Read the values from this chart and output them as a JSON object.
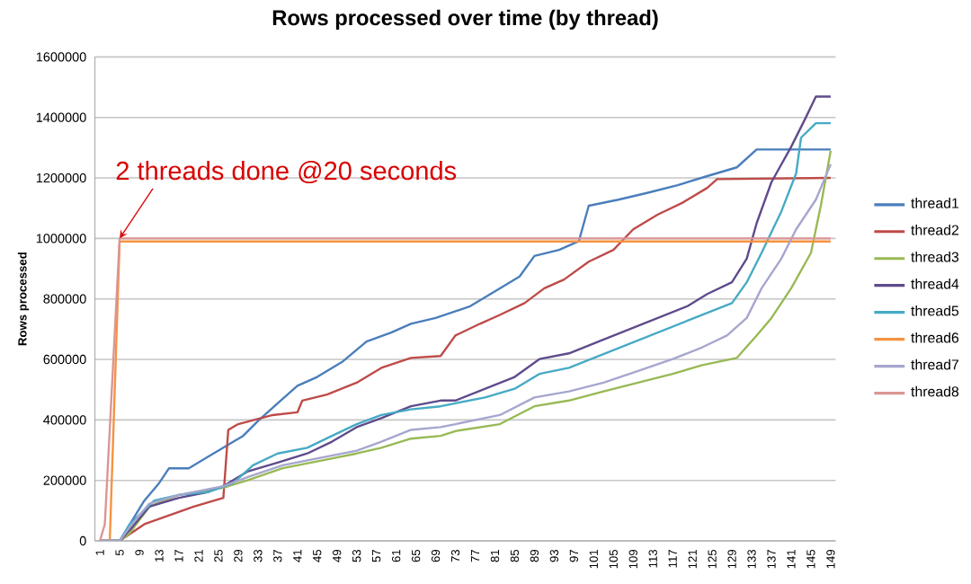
{
  "chart_data": {
    "type": "line",
    "title": "Rows processed over time (by thread)",
    "ylabel": "Rows processed",
    "xlim": [
      0,
      150
    ],
    "ylim": [
      0,
      1600000
    ],
    "xticks": [
      1,
      5,
      9,
      13,
      17,
      21,
      25,
      29,
      33,
      37,
      41,
      45,
      49,
      53,
      57,
      61,
      65,
      69,
      73,
      77,
      81,
      85,
      89,
      93,
      97,
      101,
      105,
      109,
      113,
      117,
      121,
      125,
      129,
      133,
      137,
      141,
      145,
      149
    ],
    "yticks": [
      0,
      200000,
      400000,
      600000,
      800000,
      1000000,
      1200000,
      1400000,
      1600000
    ],
    "grid": "y",
    "legend": "right",
    "annotations": [
      {
        "text": "2 threads done @20 seconds",
        "x": 5,
        "y": 1000000
      }
    ],
    "series": [
      {
        "name": "thread1",
        "color": "#4a7ebb",
        "x": [
          1,
          5,
          10,
          13,
          15,
          19,
          23,
          26,
          30,
          33,
          37,
          41,
          45,
          50,
          55,
          60,
          64,
          69,
          76,
          82,
          86,
          89,
          94,
          98,
          100,
          106,
          112,
          118,
          124,
          130,
          134,
          149
        ],
        "values": [
          0,
          0,
          133000,
          191000,
          240000,
          240000,
          279000,
          308000,
          347000,
          396000,
          455000,
          513000,
          542000,
          591000,
          659000,
          689000,
          718000,
          737000,
          776000,
          835000,
          874000,
          942000,
          962000,
          991000,
          1108000,
          1128000,
          1151000,
          1176000,
          1206000,
          1235000,
          1294000,
          1294000
        ]
      },
      {
        "name": "thread2",
        "color": "#be4b48",
        "x": [
          1,
          5,
          10,
          15,
          20,
          26,
          27,
          29,
          36,
          41,
          42,
          47,
          53,
          58,
          64,
          70,
          73,
          78,
          82,
          87,
          91,
          95,
          100,
          105,
          109,
          114,
          119,
          124,
          126,
          149
        ],
        "values": [
          0,
          0,
          55000,
          84000,
          113000,
          142000,
          367000,
          386000,
          416000,
          425000,
          464000,
          484000,
          523000,
          572000,
          605000,
          611000,
          679000,
          718000,
          747000,
          786000,
          835000,
          864000,
          923000,
          962000,
          1030000,
          1079000,
          1118000,
          1167000,
          1196000,
          1200000
        ]
      },
      {
        "name": "thread3",
        "color": "#98b954",
        "x": [
          1,
          5,
          7,
          11,
          17,
          26,
          31,
          38,
          47,
          53,
          58,
          64,
          70,
          73,
          82,
          89,
          96,
          103,
          110,
          117,
          123,
          130,
          134,
          137,
          141,
          145,
          147,
          149
        ],
        "values": [
          0,
          0,
          25000,
          113000,
          152000,
          176000,
          201000,
          240000,
          269000,
          289000,
          308000,
          338000,
          347000,
          363000,
          386000,
          445000,
          464000,
          494000,
          523000,
          552000,
          581000,
          605000,
          679000,
          737000,
          835000,
          952000,
          1108000,
          1290000
        ]
      },
      {
        "name": "thread4",
        "color": "#5f4b8b",
        "x": [
          1,
          5,
          7,
          11,
          17,
          23,
          26,
          31,
          37,
          43,
          48,
          53,
          58,
          64,
          70,
          73,
          79,
          85,
          90,
          96,
          102,
          108,
          114,
          120,
          124,
          129,
          132,
          134,
          137,
          141,
          144,
          146,
          149
        ],
        "values": [
          0,
          0,
          35000,
          113000,
          142000,
          162000,
          181000,
          230000,
          259000,
          289000,
          328000,
          376000,
          406000,
          445000,
          464000,
          464000,
          503000,
          542000,
          601000,
          620000,
          659000,
          698000,
          737000,
          776000,
          816000,
          855000,
          933000,
          1050000,
          1186000,
          1303000,
          1401000,
          1469000,
          1469000
        ]
      },
      {
        "name": "thread5",
        "color": "#46aac5",
        "x": [
          1,
          5,
          7,
          12,
          17,
          23,
          28,
          32,
          37,
          43,
          48,
          53,
          58,
          64,
          70,
          73,
          79,
          85,
          90,
          96,
          102,
          108,
          114,
          120,
          126,
          129,
          132,
          135,
          139,
          142,
          143,
          146,
          149
        ],
        "values": [
          0,
          0,
          55000,
          133000,
          152000,
          162000,
          191000,
          250000,
          289000,
          308000,
          347000,
          386000,
          416000,
          435000,
          445000,
          455000,
          474000,
          503000,
          552000,
          572000,
          611000,
          650000,
          689000,
          728000,
          767000,
          786000,
          855000,
          952000,
          1089000,
          1215000,
          1333000,
          1381000,
          1381000
        ]
      },
      {
        "name": "thread6",
        "color": "#f69240",
        "x": [
          1,
          3,
          5,
          149
        ],
        "values": [
          0,
          0,
          990000,
          990000
        ]
      },
      {
        "name": "thread7",
        "color": "#a6a6cf",
        "x": [
          1,
          5,
          7,
          11,
          17,
          26,
          31,
          38,
          47,
          53,
          58,
          64,
          70,
          73,
          82,
          89,
          96,
          103,
          110,
          117,
          123,
          128,
          132,
          135,
          139,
          142,
          146,
          149
        ],
        "values": [
          0,
          0,
          45000,
          123000,
          152000,
          181000,
          211000,
          250000,
          279000,
          298000,
          328000,
          367000,
          376000,
          386000,
          416000,
          474000,
          494000,
          523000,
          562000,
          601000,
          640000,
          679000,
          737000,
          835000,
          933000,
          1030000,
          1128000,
          1245000
        ]
      },
      {
        "name": "thread8",
        "color": "#da9694",
        "x": [
          1,
          2,
          5,
          149
        ],
        "values": [
          0,
          55000,
          1000000,
          1000000
        ]
      }
    ]
  }
}
